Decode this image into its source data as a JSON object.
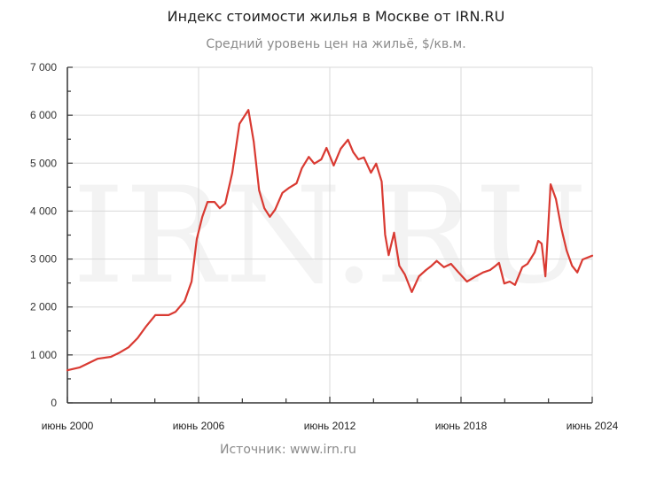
{
  "header": {
    "title": "Индекс стоимости жилья в Москве от IRN.RU",
    "subtitle": "Средний уровень цен на жильё, $/кв.м."
  },
  "footer": {
    "source": "Источник: www.irn.ru"
  },
  "watermark": "IRN.RU",
  "colors": {
    "line": "#d93a32",
    "grid": "#d8d8d8",
    "axis": "#333333",
    "watermark": "#f3f3f3"
  },
  "chart_data": {
    "type": "line",
    "title": "Индекс стоимости жилья в Москве от IRN.RU",
    "subtitle": "Средний уровень цен на жильё, $/кв.м.",
    "xlabel": "",
    "ylabel": "$/кв.м.",
    "ylim": [
      0,
      7000
    ],
    "xlim": [
      2000.5,
      2024.5
    ],
    "grid": true,
    "legend": "none",
    "y_ticks": [
      "0",
      "1 000",
      "2 000",
      "3 000",
      "4 000",
      "5 000",
      "6 000",
      "7 000"
    ],
    "y_tick_values": [
      0,
      1000,
      2000,
      3000,
      4000,
      5000,
      6000,
      7000
    ],
    "x_ticks": [
      "июнь 2000",
      "июнь 2006",
      "июнь 2012",
      "июнь 2018",
      "июнь 2024"
    ],
    "x_tick_values": [
      2000.5,
      2006.5,
      2012.5,
      2018.5,
      2024.5
    ],
    "annotation": "Источник: www.irn.ru",
    "series": [
      {
        "name": "Средний уровень цен на жильё, $/кв.м.",
        "x": [
          2000.5,
          2001.07,
          2001.47,
          2001.88,
          2002.49,
          2002.9,
          2003.3,
          2003.71,
          2004.11,
          2004.52,
          2005.13,
          2005.45,
          2005.86,
          2006.18,
          2006.42,
          2006.67,
          2006.91,
          2007.23,
          2007.47,
          2007.72,
          2008.04,
          2008.37,
          2008.78,
          2009.02,
          2009.27,
          2009.51,
          2009.76,
          2010.0,
          2010.33,
          2010.65,
          2010.98,
          2011.22,
          2011.54,
          2011.79,
          2012.11,
          2012.35,
          2012.68,
          2013.0,
          2013.33,
          2013.57,
          2013.81,
          2014.06,
          2014.38,
          2014.62,
          2014.87,
          2015.03,
          2015.19,
          2015.44,
          2015.68,
          2015.93,
          2016.25,
          2016.58,
          2016.9,
          2017.15,
          2017.39,
          2017.72,
          2018.04,
          2018.37,
          2018.77,
          2019.18,
          2019.51,
          2019.83,
          2020.08,
          2020.24,
          2020.48,
          2020.73,
          2020.97,
          2021.3,
          2021.54,
          2021.87,
          2022.03,
          2022.19,
          2022.36,
          2022.6,
          2022.84,
          2023.09,
          2023.33,
          2023.58,
          2023.82,
          2024.06,
          2024.5
        ],
        "values": [
          680,
          740,
          830,
          920,
          960,
          1050,
          1160,
          1350,
          1600,
          1830,
          1830,
          1900,
          2120,
          2530,
          3420,
          3880,
          4190,
          4190,
          4060,
          4160,
          4800,
          5820,
          6110,
          5450,
          4430,
          4060,
          3880,
          4030,
          4380,
          4490,
          4580,
          4890,
          5130,
          4990,
          5080,
          5320,
          4950,
          5300,
          5490,
          5230,
          5080,
          5120,
          4800,
          4990,
          4620,
          3510,
          3080,
          3550,
          2860,
          2680,
          2310,
          2640,
          2770,
          2860,
          2960,
          2830,
          2900,
          2730,
          2530,
          2640,
          2720,
          2770,
          2860,
          2920,
          2490,
          2530,
          2460,
          2830,
          2900,
          3140,
          3380,
          3320,
          2640,
          4560,
          4250,
          3640,
          3180,
          2860,
          2720,
          2990,
          3070
        ]
      }
    ]
  }
}
